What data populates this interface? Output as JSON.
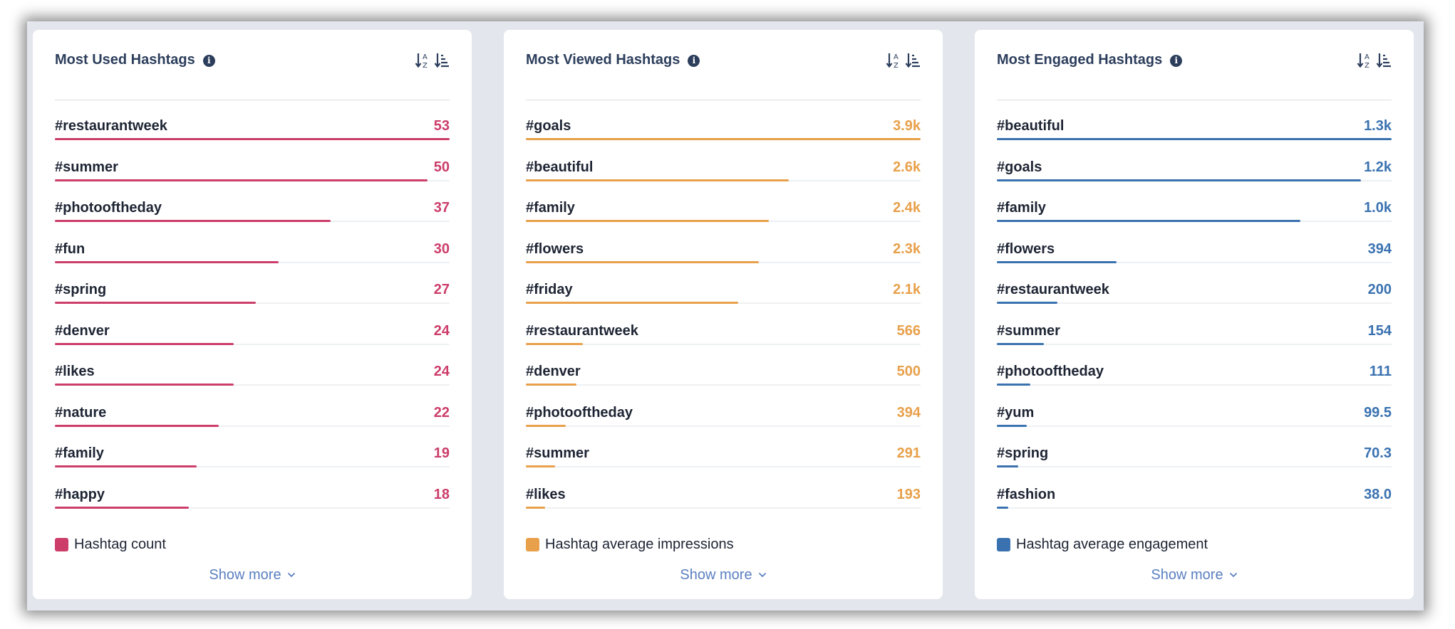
{
  "panels": [
    {
      "title": "Most Used Hashtags",
      "color": "#cc3d6a",
      "legend": "Hashtag count",
      "show_more": "Show more",
      "max": 53,
      "items": [
        {
          "tag": "#restaurantweek",
          "value": "53",
          "num": 53
        },
        {
          "tag": "#summer",
          "value": "50",
          "num": 50
        },
        {
          "tag": "#photooftheday",
          "value": "37",
          "num": 37
        },
        {
          "tag": "#fun",
          "value": "30",
          "num": 30
        },
        {
          "tag": "#spring",
          "value": "27",
          "num": 27
        },
        {
          "tag": "#denver",
          "value": "24",
          "num": 24
        },
        {
          "tag": "#likes",
          "value": "24",
          "num": 24
        },
        {
          "tag": "#nature",
          "value": "22",
          "num": 22
        },
        {
          "tag": "#family",
          "value": "19",
          "num": 19
        },
        {
          "tag": "#happy",
          "value": "18",
          "num": 18
        }
      ]
    },
    {
      "title": "Most Viewed Hashtags",
      "color": "#e8a04a",
      "legend": "Hashtag average impressions",
      "show_more": "Show more",
      "max": 3900,
      "items": [
        {
          "tag": "#goals",
          "value": "3.9k",
          "num": 3900
        },
        {
          "tag": "#beautiful",
          "value": "2.6k",
          "num": 2600
        },
        {
          "tag": "#family",
          "value": "2.4k",
          "num": 2400
        },
        {
          "tag": "#flowers",
          "value": "2.3k",
          "num": 2300
        },
        {
          "tag": "#friday",
          "value": "2.1k",
          "num": 2100
        },
        {
          "tag": "#restaurantweek",
          "value": "566",
          "num": 566
        },
        {
          "tag": "#denver",
          "value": "500",
          "num": 500
        },
        {
          "tag": "#photooftheday",
          "value": "394",
          "num": 394
        },
        {
          "tag": "#summer",
          "value": "291",
          "num": 291
        },
        {
          "tag": "#likes",
          "value": "193",
          "num": 193
        }
      ]
    },
    {
      "title": "Most Engaged Hashtags",
      "color": "#3a72b0",
      "legend": "Hashtag average engagement",
      "show_more": "Show more",
      "max": 1300,
      "items": [
        {
          "tag": "#beautiful",
          "value": "1.3k",
          "num": 1300
        },
        {
          "tag": "#goals",
          "value": "1.2k",
          "num": 1200
        },
        {
          "tag": "#family",
          "value": "1.0k",
          "num": 1000
        },
        {
          "tag": "#flowers",
          "value": "394",
          "num": 394
        },
        {
          "tag": "#restaurantweek",
          "value": "200",
          "num": 200
        },
        {
          "tag": "#summer",
          "value": "154",
          "num": 154
        },
        {
          "tag": "#photooftheday",
          "value": "111",
          "num": 111
        },
        {
          "tag": "#yum",
          "value": "99.5",
          "num": 99.5
        },
        {
          "tag": "#spring",
          "value": "70.3",
          "num": 70.3
        },
        {
          "tag": "#fashion",
          "value": "38.0",
          "num": 38.0
        }
      ]
    }
  ]
}
